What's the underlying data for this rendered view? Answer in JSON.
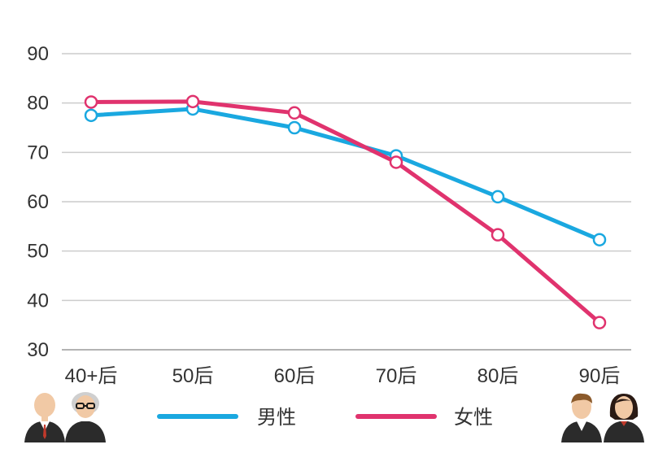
{
  "chart_data": {
    "type": "line",
    "categories": [
      "40+后",
      "50后",
      "60后",
      "70后",
      "80后",
      "90后"
    ],
    "series": [
      {
        "name": "男性",
        "color": "#1aa8e0",
        "values": [
          77.5,
          78.8,
          75.0,
          69.3,
          61.0,
          52.3
        ]
      },
      {
        "name": "女性",
        "color": "#e0336e",
        "values": [
          80.2,
          80.3,
          78.0,
          68.0,
          53.3,
          35.5
        ]
      }
    ],
    "yticks": [
      30,
      40,
      50,
      60,
      70,
      80,
      90
    ],
    "ylim": [
      30,
      90
    ],
    "grid": true,
    "legend_position": "bottom",
    "xlabel": "",
    "ylabel": ""
  },
  "decorations": {
    "left_icons": [
      "elderly-man-icon",
      "elderly-woman-icon"
    ],
    "right_icons": [
      "young-man-icon",
      "young-woman-icon"
    ]
  }
}
